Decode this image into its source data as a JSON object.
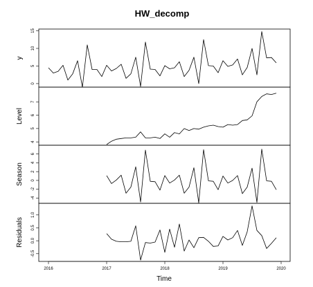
{
  "chart_data": {
    "type": "line",
    "title": "HW_decomp",
    "xlabel": "Time",
    "xlim": [
      2016,
      2020
    ],
    "xticks": [
      2016,
      2017,
      2018,
      2019,
      2020
    ],
    "panels": [
      {
        "name": "y",
        "ylim": [
          -1,
          15.5
        ],
        "yticks": [
          0,
          5,
          10,
          15
        ],
        "x_start": 2016.0,
        "values": [
          4.5,
          3.0,
          3.5,
          5.2,
          1.0,
          2.8,
          6.5,
          -1.0,
          11.0,
          4.0,
          4.0,
          2.0,
          5.2,
          3.6,
          4.3,
          5.5,
          1.5,
          2.8,
          7.5,
          -0.8,
          11.8,
          4.1,
          4.0,
          2.2,
          5.1,
          4.2,
          4.5,
          6.2,
          2.0,
          3.8,
          7.5,
          0.0,
          12.5,
          5.1,
          5.0,
          3.1,
          6.5,
          4.9,
          5.3,
          7.0,
          2.5,
          4.6,
          10.0,
          2.5,
          14.8,
          7.3,
          7.4,
          5.9
        ]
      },
      {
        "name": "Level",
        "ylim": [
          3.75,
          8.1
        ],
        "yticks": [
          4,
          5,
          6,
          7
        ],
        "x_start": 2017.0,
        "values": [
          3.8,
          4.05,
          4.2,
          4.25,
          4.3,
          4.3,
          4.35,
          4.75,
          4.3,
          4.3,
          4.35,
          4.25,
          4.6,
          4.35,
          4.7,
          4.6,
          5.0,
          4.85,
          5.0,
          4.95,
          5.1,
          5.2,
          5.25,
          5.15,
          5.1,
          5.3,
          5.25,
          5.3,
          5.6,
          5.65,
          5.95,
          7.0,
          7.4,
          7.6,
          7.55,
          7.65
        ]
      },
      {
        "name": "Season",
        "ylim": [
          -5.2,
          8.0
        ],
        "yticks": [
          -4,
          -2,
          0,
          2,
          4,
          6
        ],
        "x_start": 2017.0,
        "values": [
          1.1,
          -0.7,
          0.1,
          1.2,
          -2.9,
          -1.5,
          3.1,
          -4.9,
          6.9,
          -0.2,
          -0.3,
          -2.2,
          1.1,
          -0.6,
          0.1,
          1.2,
          -2.9,
          -1.5,
          2.9,
          -5.1,
          7.0,
          -0.1,
          -0.2,
          -2.1,
          1.0,
          -0.6,
          0.0,
          1.1,
          -3.0,
          -1.5,
          2.8,
          -5.0,
          7.1,
          -0.1,
          -0.2,
          -2.1
        ]
      },
      {
        "name": "Residuals",
        "ylim": [
          -0.8,
          1.45
        ],
        "yticks": [
          -0.5,
          0.0,
          0.5,
          1.0
        ],
        "ytick_labels": [
          "-0.5",
          "0.0",
          "0.5",
          "1.0"
        ],
        "x_start": 2017.0,
        "values": [
          0.28,
          0.06,
          -0.02,
          -0.04,
          -0.04,
          -0.02,
          0.58,
          -0.75,
          -0.07,
          -0.09,
          -0.05,
          0.42,
          -0.45,
          0.45,
          -0.25,
          0.65,
          -0.4,
          0.03,
          -0.27,
          0.12,
          0.13,
          -0.02,
          -0.22,
          -0.2,
          0.17,
          0.03,
          0.12,
          0.4,
          -0.18,
          0.35,
          1.35,
          0.4,
          0.2,
          -0.3,
          -0.1,
          0.12
        ]
      }
    ]
  }
}
